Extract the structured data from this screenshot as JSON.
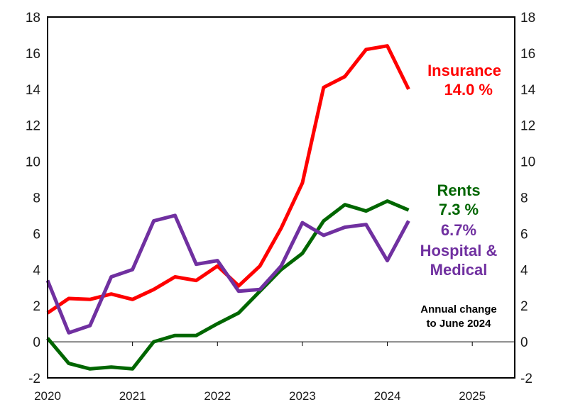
{
  "chart_data": {
    "type": "line",
    "ylim": [
      -2,
      18
    ],
    "xlim": [
      2020,
      2025.5
    ],
    "yticks": [
      -2,
      0,
      2,
      4,
      6,
      8,
      10,
      12,
      14,
      16,
      18
    ],
    "ytick_labels": [
      "-2",
      "0",
      "2",
      "4",
      "6",
      "8",
      "10",
      "12",
      "14",
      "16",
      "18"
    ],
    "xticks": [
      2020,
      2021,
      2022,
      2023,
      2024,
      2025
    ],
    "xtick_labels": [
      "2020",
      "2021",
      "2022",
      "2023",
      "2024",
      "2025"
    ],
    "grid": false,
    "x": [
      2020.0,
      2020.25,
      2020.5,
      2020.75,
      2021.0,
      2021.25,
      2021.5,
      2021.75,
      2022.0,
      2022.25,
      2022.5,
      2022.75,
      2023.0,
      2023.25,
      2023.5,
      2023.75,
      2024.0,
      2024.25
    ],
    "series": [
      {
        "name": "Insurance",
        "color": "#ff0000",
        "values": [
          1.6,
          2.4,
          2.35,
          2.65,
          2.35,
          2.9,
          3.6,
          3.4,
          4.2,
          3.1,
          4.2,
          6.3,
          8.8,
          14.1,
          14.7,
          16.2,
          16.4,
          14.0
        ]
      },
      {
        "name": "Rents",
        "color": "#006600",
        "values": [
          0.2,
          -1.2,
          -1.5,
          -1.4,
          -1.5,
          0.0,
          0.35,
          0.35,
          1.0,
          1.6,
          2.8,
          4.0,
          4.9,
          6.7,
          7.6,
          7.25,
          7.8,
          7.3
        ]
      },
      {
        "name": "Hospital & Medical",
        "color": "#7030a0",
        "values": [
          3.4,
          0.5,
          0.9,
          3.6,
          4.0,
          6.7,
          7.0,
          4.3,
          4.5,
          2.8,
          2.9,
          4.2,
          6.6,
          5.9,
          6.35,
          6.5,
          4.5,
          6.7
        ]
      }
    ],
    "annotations": {
      "insurance_name": "Insurance",
      "insurance_value": "14.0 %",
      "rents_name": "Rents",
      "rents_value": "7.3 %",
      "medical_value": "6.7%",
      "medical_name_line1": "Hospital &",
      "medical_name_line2": "Medical",
      "note_line1": "Annual  change",
      "note_line2": "to June  2024"
    }
  }
}
